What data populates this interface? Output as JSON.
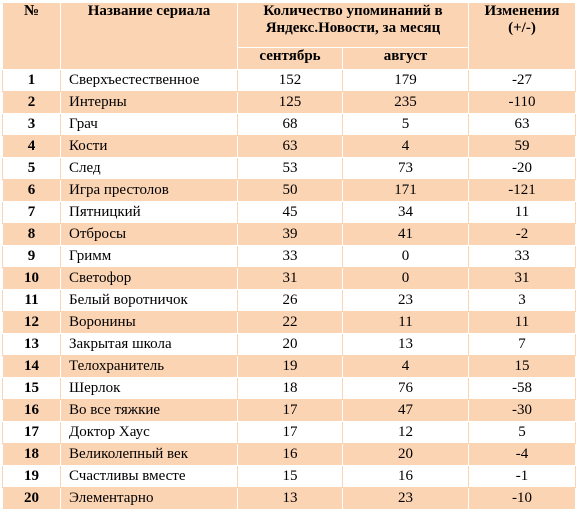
{
  "table": {
    "header": {
      "rank": "№",
      "name": "Название сериала",
      "mentions": "Количество упоминаний в Яндекс.Новости, за месяц",
      "change": "Изменения (+/-)",
      "september": "сентябрь",
      "august": "август"
    },
    "rows": [
      [
        1,
        "Сверхъестественное",
        152,
        179,
        -27
      ],
      [
        2,
        "Интерны",
        125,
        235,
        -110
      ],
      [
        3,
        "Грач",
        68,
        5,
        63
      ],
      [
        4,
        "Кости",
        63,
        4,
        59
      ],
      [
        5,
        "След",
        53,
        73,
        -20
      ],
      [
        6,
        "Игра престолов",
        50,
        171,
        -121
      ],
      [
        7,
        "Пятницкий",
        45,
        34,
        11
      ],
      [
        8,
        "Отбросы",
        39,
        41,
        -2
      ],
      [
        9,
        "Гримм",
        33,
        0,
        33
      ],
      [
        10,
        "Светофор",
        31,
        0,
        31
      ],
      [
        11,
        "Белый воротничок",
        26,
        23,
        3
      ],
      [
        12,
        "Воронины",
        22,
        11,
        11
      ],
      [
        13,
        "Закрытая школа",
        20,
        13,
        7
      ],
      [
        14,
        "Телохранитель",
        19,
        4,
        15
      ],
      [
        15,
        "Шерлок",
        18,
        76,
        -58
      ],
      [
        16,
        "Во все тяжкие",
        17,
        47,
        -30
      ],
      [
        17,
        "Доктор Хаус",
        17,
        12,
        5
      ],
      [
        18,
        "Великолепный век",
        16,
        20,
        -4
      ],
      [
        19,
        "Счастливы вместе",
        15,
        16,
        -1
      ],
      [
        20,
        "Элементарно",
        13,
        23,
        -10
      ]
    ]
  }
}
